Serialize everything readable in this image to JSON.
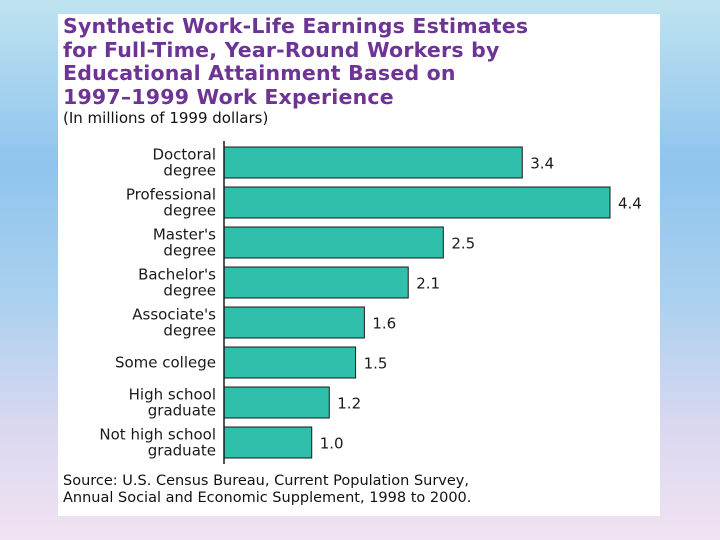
{
  "title_lines": [
    "Synthetic Work-Life Earnings Estimates",
    "for Full-Time, Year-Round Workers by",
    "Educational Attainment Based on",
    "1997–1999 Work Experience"
  ],
  "subtitle": "(In millions of 1999 dollars)",
  "source_lines": [
    "Source: U.S. Census Bureau, Current Population Survey,",
    "Annual Social and Economic Supplement, 1998 to 2000."
  ],
  "colors": {
    "bar": "#2fbfaa",
    "title": "#6e3495"
  },
  "chart_data": {
    "type": "bar",
    "orientation": "horizontal",
    "title": "Synthetic Work-Life Earnings Estimates for Full-Time, Year-Round Workers by Educational Attainment Based on 1997–1999 Work Experience",
    "ylabel": "",
    "xlabel": "",
    "xlim": [
      0,
      4.4
    ],
    "grid": false,
    "categories": [
      [
        "Doctoral",
        "degree"
      ],
      [
        "Professional",
        "degree"
      ],
      [
        "Master's",
        "degree"
      ],
      [
        "Bachelor's",
        "degree"
      ],
      [
        "Associate's",
        "degree"
      ],
      [
        "Some  college"
      ],
      [
        "High school",
        "graduate"
      ],
      [
        "Not high school",
        "graduate"
      ]
    ],
    "values": [
      3.4,
      4.4,
      2.5,
      2.1,
      1.6,
      1.5,
      1.2,
      1.0
    ],
    "value_labels": [
      "3.4",
      "4.4",
      "2.5",
      "2.1",
      "1.6",
      "1.5",
      "1.2",
      "1.0"
    ]
  }
}
